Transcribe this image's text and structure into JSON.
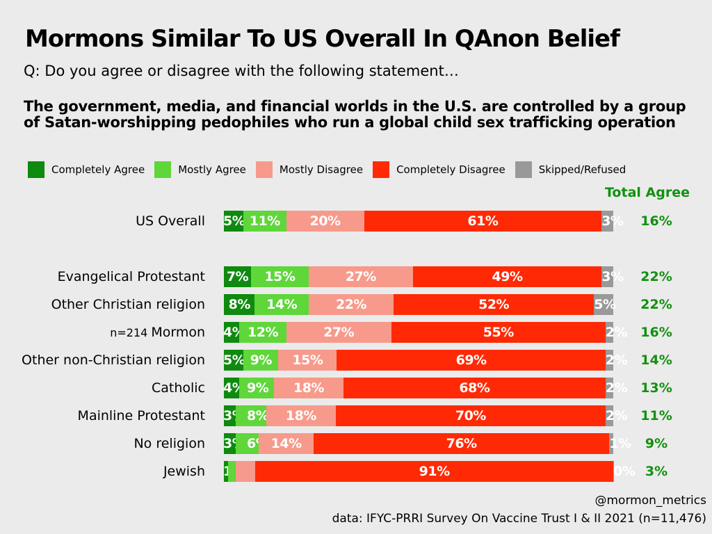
{
  "chart_data": {
    "type": "bar",
    "orientation": "horizontal-stacked",
    "title": "Mormons Similar To US Overall In QAnon Belief",
    "subtitle": "Q: Do you agree or disagree with the following statement…",
    "statement": "The government, media, and financial worlds in the U.S. are controlled by a group of Satan-worshipping pedophiles who run a global child sex trafficking operation",
    "legend": [
      "Completely Agree",
      "Mostly Agree",
      "Mostly Disagree",
      "Completely Disagree",
      "Skipped/Refused"
    ],
    "colors": [
      "#0e8a0e",
      "#5fd63a",
      "#f79a8b",
      "#ff2a05",
      "#999999"
    ],
    "total_header": "Total Agree",
    "categories": [
      "US Overall",
      "Evangelical Protestant",
      "Other Christian religion",
      "Mormon",
      "Other non-Christian religion",
      "Catholic",
      "Mainline Protestant",
      "No religion",
      "Jewish"
    ],
    "category_notes": [
      "",
      "",
      "",
      "n=214",
      "",
      "",
      "",
      "",
      ""
    ],
    "values": [
      [
        5,
        11,
        20,
        61,
        3
      ],
      [
        7,
        15,
        27,
        49,
        3
      ],
      [
        8,
        14,
        22,
        52,
        5
      ],
      [
        4,
        12,
        27,
        55,
        2
      ],
      [
        5,
        9,
        15,
        69,
        2
      ],
      [
        4,
        9,
        18,
        68,
        2
      ],
      [
        3,
        8,
        18,
        70,
        2
      ],
      [
        3,
        6,
        14,
        76,
        1
      ],
      [
        1,
        2,
        5,
        91,
        0
      ]
    ],
    "total_agree": [
      "16%",
      "22%",
      "22%",
      "16%",
      "14%",
      "13%",
      "11%",
      "9%",
      "3%"
    ]
  },
  "footer": {
    "handle": "@mormon_metrics",
    "source": "data: IFYC-PRRI Survey On Vaccine Trust I & II 2021 (n=11,476)"
  }
}
